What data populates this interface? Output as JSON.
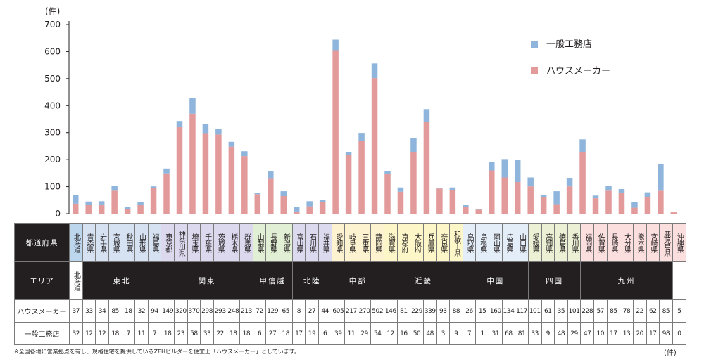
{
  "chart_data": {
    "type": "bar",
    "stacked": true,
    "unit_label": "(件)",
    "ylim": [
      0,
      700
    ],
    "yticks": [
      0,
      100,
      200,
      300,
      400,
      500,
      600,
      700
    ],
    "categories": [
      "北海道",
      "青森県",
      "岩手県",
      "宮城県",
      "秋田県",
      "山形県",
      "福島県",
      "東京都",
      "神奈川県",
      "埼玉県",
      "千葉県",
      "茨城県",
      "栃木県",
      "群馬県",
      "山梨県",
      "長野県",
      "新潟県",
      "富山県",
      "石川県",
      "福井県",
      "愛知県",
      "岐阜県",
      "三重県",
      "静岡県",
      "滋賀県",
      "京都府",
      "大阪府",
      "兵庫県",
      "奈良県",
      "和歌山県",
      "鳥取県",
      "島根県",
      "岡山県",
      "広島県",
      "山口県",
      "愛媛県",
      "高知県",
      "徳島県",
      "香川県",
      "福岡県",
      "佐賀県",
      "長崎県",
      "大分県",
      "熊本県",
      "宮崎県",
      "鹿児島県",
      "沖縄県"
    ],
    "series": [
      {
        "name": "ハウスメーカー",
        "color": "#e39a9a",
        "values": [
          37,
          33,
          34,
          85,
          18,
          32,
          94,
          149,
          320,
          370,
          298,
          293,
          248,
          213,
          72,
          129,
          65,
          8,
          27,
          44,
          605,
          217,
          270,
          502,
          146,
          81,
          229,
          339,
          93,
          88,
          26,
          15,
          160,
          134,
          117,
          101,
          61,
          35,
          101,
          228,
          57,
          85,
          78,
          22,
          62,
          85,
          5
        ]
      },
      {
        "name": "一般工務店",
        "color": "#8fb5dc",
        "values": [
          32,
          12,
          12,
          18,
          7,
          11,
          7,
          18,
          23,
          58,
          33,
          22,
          18,
          18,
          6,
          27,
          18,
          17,
          19,
          6,
          39,
          11,
          29,
          54,
          12,
          16,
          50,
          48,
          3,
          9,
          7,
          1,
          31,
          68,
          81,
          33,
          9,
          48,
          29,
          47,
          10,
          17,
          13,
          20,
          17,
          98,
          0
        ]
      }
    ],
    "legend_position": "top-right",
    "grid": false
  },
  "table": {
    "row_labels": {
      "pref": "都道府県",
      "area": "エリア",
      "house": "ハウスメーカー",
      "general": "一般工務店"
    },
    "regions": [
      {
        "name": "北海道",
        "span": 1,
        "color": "#bcd6ee"
      },
      {
        "name": "東北",
        "span": 6,
        "color": "#d6e2f2"
      },
      {
        "name": "関東",
        "span": 7,
        "color": "#dcd8ee"
      },
      {
        "name": "甲信越",
        "span": 3,
        "color": "#e1efd4"
      },
      {
        "name": "北陸",
        "span": 3,
        "color": "#dcdaef"
      },
      {
        "name": "中部",
        "span": 4,
        "color": "#fdf3d0"
      },
      {
        "name": "近畿",
        "span": 6,
        "color": "#fdf6c9"
      },
      {
        "name": "中国",
        "span": 5,
        "color": "#e4eef8"
      },
      {
        "name": "四国",
        "span": 4,
        "color": "#ecf0d4"
      },
      {
        "name": "九州",
        "span": 7,
        "color": "#fbdede"
      },
      {
        "name": "",
        "span": 1,
        "color": "#fbdede"
      }
    ]
  },
  "footnote": "※全国各地に営業拠点を有し、規格住宅を提供しているZEHビルダーを便宜上「ハウスメーカー」としています。",
  "unit_right": "(件)"
}
